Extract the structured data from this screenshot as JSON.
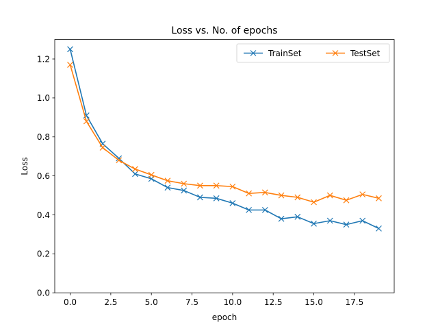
{
  "chart_data": {
    "type": "line",
    "title": "Loss vs. No. of epochs",
    "xlabel": "epoch",
    "ylabel": "Loss",
    "xlim": [
      -0.95,
      19.95
    ],
    "ylim": [
      0.0,
      1.3
    ],
    "xticks": [
      0.0,
      2.5,
      5.0,
      7.5,
      10.0,
      12.5,
      15.0,
      17.5
    ],
    "xtick_labels": [
      "0.0",
      "2.5",
      "5.0",
      "7.5",
      "10.0",
      "12.5",
      "15.0",
      "17.5"
    ],
    "yticks": [
      0.0,
      0.2,
      0.4,
      0.6,
      0.8,
      1.0,
      1.2
    ],
    "ytick_labels": [
      "0.0",
      "0.2",
      "0.4",
      "0.6",
      "0.8",
      "1.0",
      "1.2"
    ],
    "grid": false,
    "legend_position": "top-right",
    "x": [
      0,
      1,
      2,
      3,
      4,
      5,
      6,
      7,
      8,
      9,
      10,
      11,
      12,
      13,
      14,
      15,
      16,
      17,
      18,
      19
    ],
    "series": [
      {
        "name": "TrainSet",
        "color": "#1f77b4",
        "marker": "x",
        "values": [
          1.25,
          0.91,
          0.765,
          0.69,
          0.61,
          0.585,
          0.54,
          0.525,
          0.49,
          0.485,
          0.46,
          0.425,
          0.425,
          0.38,
          0.39,
          0.355,
          0.37,
          0.35,
          0.37,
          0.33
        ]
      },
      {
        "name": "TestSet",
        "color": "#ff7f0e",
        "marker": "x",
        "values": [
          1.17,
          0.88,
          0.745,
          0.68,
          0.635,
          0.605,
          0.575,
          0.56,
          0.55,
          0.55,
          0.545,
          0.51,
          0.515,
          0.5,
          0.49,
          0.465,
          0.5,
          0.475,
          0.505,
          0.485
        ]
      }
    ]
  }
}
